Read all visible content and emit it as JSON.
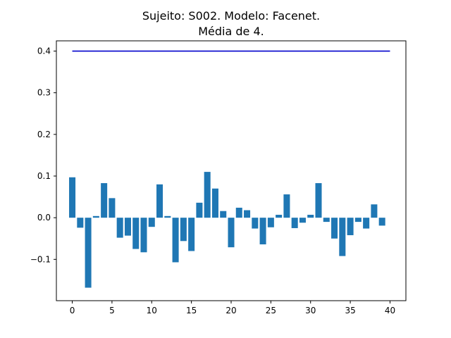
{
  "chart_data": {
    "type": "bar",
    "title": "Sujeito: S002. Modelo: Facenet.",
    "subtitle": "Média de 4.",
    "xlabel": "",
    "ylabel": "",
    "xlim": [
      -2.0,
      42.0
    ],
    "ylim": [
      -0.1992,
      0.4246
    ],
    "grid": false,
    "x_ticks": [
      0,
      5,
      10,
      15,
      20,
      25,
      30,
      35,
      40
    ],
    "x_tick_labels": [
      "0",
      "5",
      "10",
      "15",
      "20",
      "25",
      "30",
      "35",
      "40"
    ],
    "y_ticks": [
      -0.1,
      0.0,
      0.1,
      0.2,
      0.3,
      0.4
    ],
    "y_tick_labels": [
      "−0.1",
      "0.0",
      "0.1",
      "0.2",
      "0.3",
      "0.4"
    ],
    "bar_color": "#1f77b4",
    "x": [
      0,
      1,
      2,
      3,
      4,
      5,
      6,
      7,
      8,
      9,
      10,
      11,
      12,
      13,
      14,
      15,
      16,
      17,
      18,
      19,
      20,
      21,
      22,
      23,
      24,
      25,
      26,
      27,
      28,
      29,
      30,
      31,
      32,
      33,
      34,
      35,
      36,
      37,
      38,
      39
    ],
    "values": [
      0.097,
      -0.024,
      -0.168,
      0.004,
      0.083,
      0.047,
      -0.048,
      -0.043,
      -0.075,
      -0.083,
      -0.022,
      0.08,
      0.004,
      -0.107,
      -0.056,
      -0.08,
      0.036,
      0.11,
      0.07,
      0.016,
      -0.071,
      0.024,
      0.018,
      -0.026,
      -0.064,
      -0.023,
      0.007,
      0.056,
      -0.025,
      -0.012,
      0.007,
      0.083,
      -0.01,
      -0.05,
      -0.092,
      -0.042,
      -0.01,
      -0.026,
      0.032,
      -0.019
    ],
    "reference_line": {
      "y": 0.4,
      "x_range": [
        0,
        40
      ],
      "color": "#0000cc"
    }
  }
}
